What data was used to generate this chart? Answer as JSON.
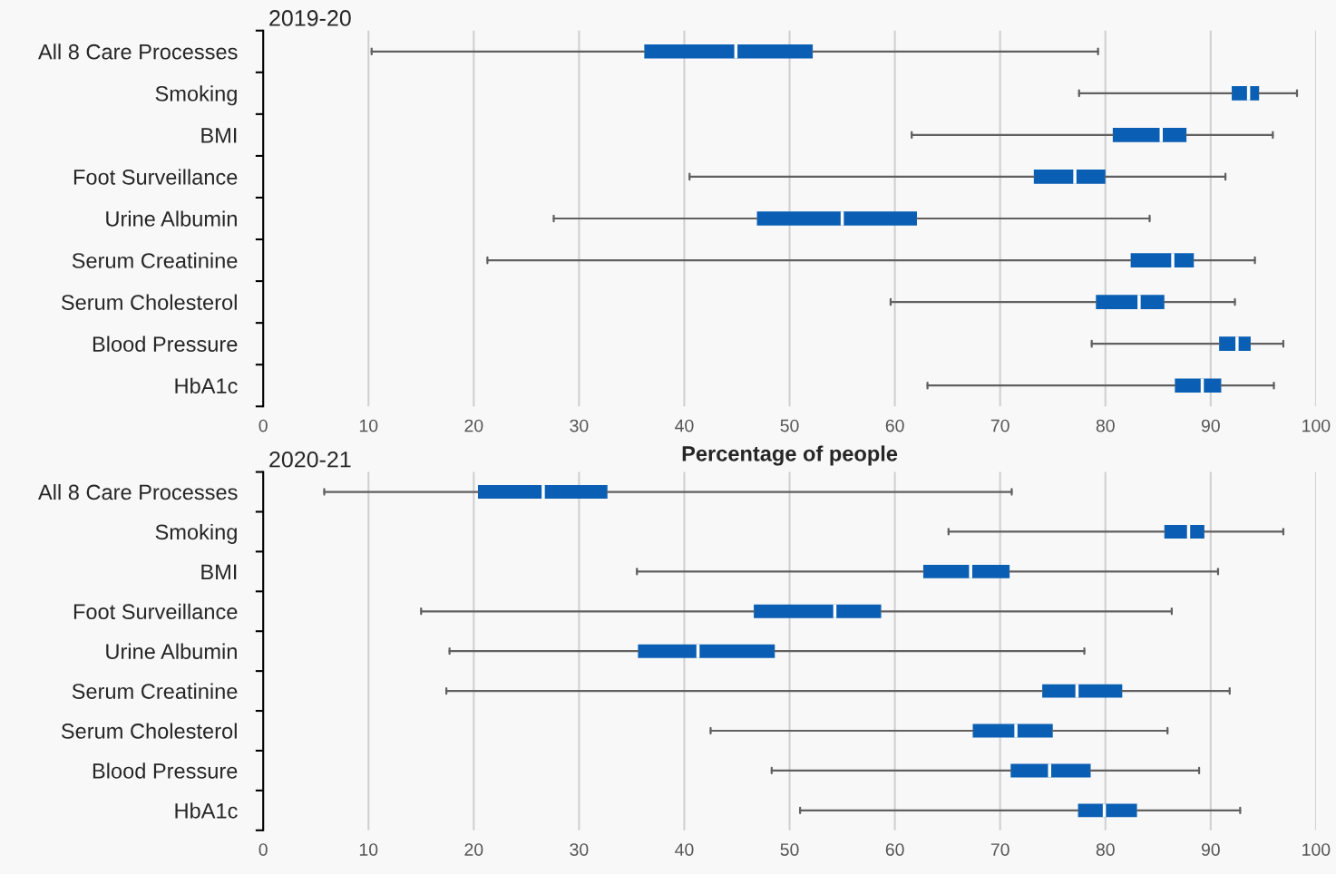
{
  "chart_data": [
    {
      "type": "box",
      "title": "2019-20",
      "xlabel": "Percentage of people",
      "orientation": "horizontal",
      "grid": "x",
      "xlim": [
        0,
        100
      ],
      "xticks": [
        0,
        10,
        20,
        30,
        40,
        50,
        60,
        70,
        80,
        90,
        100
      ],
      "categories": [
        "All 8 Care Processes",
        "Smoking",
        "BMI",
        "Foot Surveillance",
        "Urine Albumin",
        "Serum Creatinine",
        "Serum Cholesterol",
        "Blood Pressure",
        "HbA1c"
      ],
      "series": [
        {
          "color": "#0a5fb4",
          "boxes": [
            {
              "low": 10.3,
              "q1": 36.2,
              "median": 44.9,
              "q3": 52.2,
              "high": 79.3
            },
            {
              "low": 77.5,
              "q1": 92.0,
              "median": 93.6,
              "q3": 94.6,
              "high": 98.2
            },
            {
              "low": 61.6,
              "q1": 80.7,
              "median": 85.3,
              "q3": 87.7,
              "high": 95.9
            },
            {
              "low": 40.5,
              "q1": 73.2,
              "median": 77.1,
              "q3": 80.0,
              "high": 91.4
            },
            {
              "low": 27.6,
              "q1": 46.9,
              "median": 55.0,
              "q3": 62.1,
              "high": 84.2
            },
            {
              "low": 21.3,
              "q1": 82.4,
              "median": 86.4,
              "q3": 88.4,
              "high": 94.2
            },
            {
              "low": 59.6,
              "q1": 79.1,
              "median": 83.2,
              "q3": 85.6,
              "high": 92.3
            },
            {
              "low": 78.7,
              "q1": 90.8,
              "median": 92.5,
              "q3": 93.8,
              "high": 96.9
            },
            {
              "low": 63.1,
              "q1": 86.6,
              "median": 89.2,
              "q3": 91.0,
              "high": 96.0
            }
          ]
        }
      ]
    },
    {
      "type": "box",
      "title": "2020-21",
      "orientation": "horizontal",
      "grid": "x",
      "xlim": [
        0,
        100
      ],
      "xticks": [
        0,
        10,
        20,
        30,
        40,
        50,
        60,
        70,
        80,
        90,
        100
      ],
      "categories": [
        "All 8 Care Processes",
        "Smoking",
        "BMI",
        "Foot Surveillance",
        "Urine Albumin",
        "Serum Creatinine",
        "Serum Cholesterol",
        "Blood Pressure",
        "HbA1c"
      ],
      "series": [
        {
          "color": "#0a5fb4",
          "boxes": [
            {
              "low": 5.8,
              "q1": 20.4,
              "median": 26.6,
              "q3": 32.7,
              "high": 71.1
            },
            {
              "low": 65.1,
              "q1": 85.6,
              "median": 87.9,
              "q3": 89.4,
              "high": 96.9
            },
            {
              "low": 35.5,
              "q1": 62.7,
              "median": 67.2,
              "q3": 70.9,
              "high": 90.7
            },
            {
              "low": 15.0,
              "q1": 46.6,
              "median": 54.3,
              "q3": 58.7,
              "high": 86.3
            },
            {
              "low": 17.7,
              "q1": 35.6,
              "median": 41.3,
              "q3": 48.6,
              "high": 78.0
            },
            {
              "low": 17.4,
              "q1": 74.0,
              "median": 77.3,
              "q3": 81.6,
              "high": 91.8
            },
            {
              "low": 42.5,
              "q1": 67.4,
              "median": 71.5,
              "q3": 75.0,
              "high": 85.9
            },
            {
              "low": 48.3,
              "q1": 71.0,
              "median": 74.7,
              "q3": 78.6,
              "high": 88.9
            },
            {
              "low": 51.0,
              "q1": 77.4,
              "median": 79.9,
              "q3": 83.0,
              "high": 92.8
            }
          ]
        }
      ]
    }
  ]
}
